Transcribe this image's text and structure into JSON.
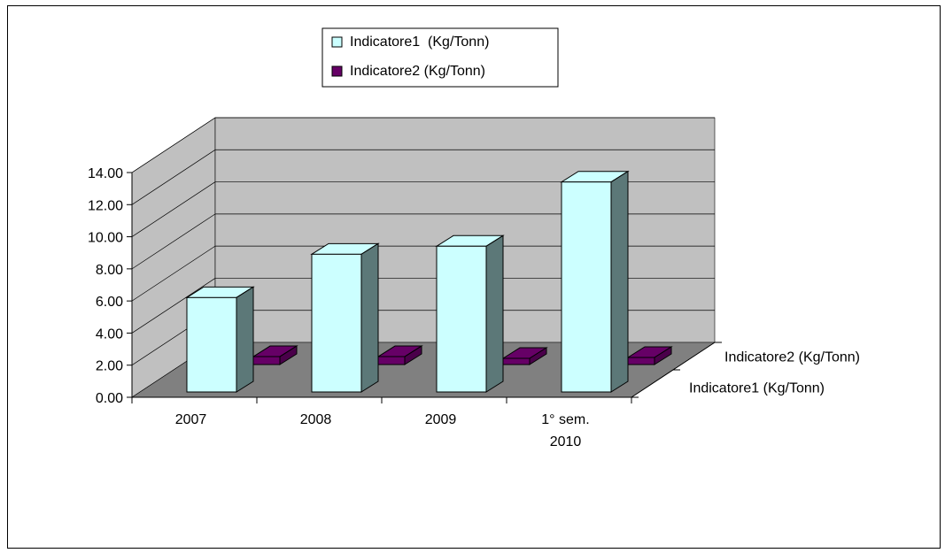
{
  "chart_data": {
    "type": "bar",
    "title": "",
    "xlabel": "",
    "ylabel": "",
    "categories": [
      [
        "2007"
      ],
      [
        "2008"
      ],
      [
        "2009"
      ],
      [
        "1° sem.",
        "2010"
      ]
    ],
    "series": [
      {
        "name": "Indicatore1  (Kg/Tonn)",
        "values": [
          6.1,
          8.8,
          9.3,
          13.3
        ],
        "color": "#ccffff"
      },
      {
        "name": "Indicatore2 (Kg/Tonn)",
        "values": [
          0.7,
          0.7,
          0.5,
          0.6
        ],
        "color": "#660066"
      }
    ],
    "depth_labels": [
      "Indicatore2 (Kg/Tonn)",
      "Indicatore1  (Kg/Tonn)"
    ],
    "y_ticks": [
      "0.00",
      "2.00",
      "4.00",
      "6.00",
      "8.00",
      "10.00",
      "12.00",
      "14.00"
    ],
    "ylim": [
      0,
      14
    ],
    "grid": true,
    "legend_position": "top-center",
    "wall_color": "#c0c0c0",
    "floor_color": "#808080"
  }
}
